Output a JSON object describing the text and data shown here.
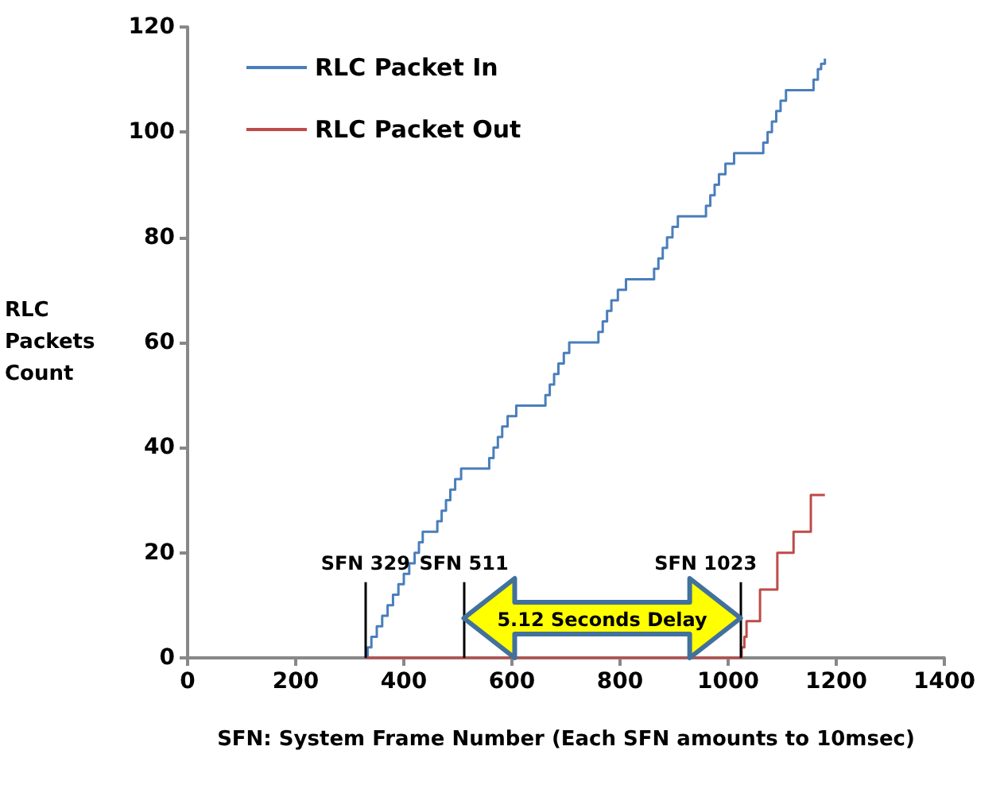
{
  "chart_data": {
    "type": "step",
    "xlabel": "SFN: System Frame Number (Each SFN amounts to 10msec)",
    "ylabel": "RLC Packets Count",
    "xlim": [
      0,
      1400
    ],
    "xticks": [
      0,
      200,
      400,
      600,
      800,
      1000,
      1200,
      1400
    ],
    "ylim": [
      0,
      120
    ],
    "yticks": [
      0,
      20,
      40,
      60,
      80,
      100,
      120
    ],
    "grid": false,
    "legend": "top left",
    "marker": "none",
    "line_style": "solid",
    "series": [
      {
        "name": "RLC Packet In",
        "color": "#4a7ebb",
        "x": [
          329,
          333,
          340,
          350,
          360,
          370,
          380,
          390,
          400,
          410,
          420,
          428,
          435,
          456,
          462,
          470,
          478,
          486,
          495,
          506,
          552,
          558,
          566,
          574,
          582,
          592,
          608,
          656,
          662,
          670,
          678,
          686,
          696,
          706,
          754,
          760,
          768,
          776,
          784,
          796,
          811,
          857,
          863,
          871,
          879,
          887,
          897,
          907,
          953,
          959,
          967,
          975,
          983,
          995,
          1011,
          1059,
          1065,
          1073,
          1081,
          1089,
          1097,
          1107,
          1152,
          1158,
          1166,
          1172,
          1179
        ],
        "values": [
          0,
          2,
          4,
          6,
          8,
          10,
          12,
          14,
          16,
          18,
          20,
          22,
          24,
          24,
          26,
          28,
          30,
          32,
          34,
          36,
          36,
          38,
          40,
          42,
          44,
          46,
          48,
          48,
          50,
          52,
          54,
          56,
          58,
          60,
          60,
          62,
          64,
          66,
          68,
          70,
          72,
          72,
          74,
          76,
          78,
          80,
          82,
          84,
          84,
          86,
          88,
          90,
          92,
          94,
          96,
          96,
          98,
          100,
          102,
          104,
          106,
          108,
          108,
          110,
          112,
          113,
          114
        ]
      },
      {
        "name": "RLC Packet Out",
        "color": "#be4b48",
        "x": [
          329,
          1018,
          1025,
          1030,
          1034,
          1056,
          1059,
          1088,
          1091,
          1118,
          1121,
          1149,
          1153,
          1179
        ],
        "values": [
          0,
          0,
          2,
          4,
          7,
          7,
          13,
          13,
          20,
          20,
          24,
          24,
          31,
          31
        ]
      }
    ],
    "ref_lines": [
      {
        "axis": "x",
        "value": 329,
        "label": "SFN 329",
        "color": "#000000"
      },
      {
        "axis": "x",
        "value": 511,
        "label": "SFN 511",
        "color": "#000000"
      },
      {
        "axis": "x",
        "value": 1023,
        "label": "SFN 1023",
        "color": "#000000"
      }
    ],
    "annotations": [
      "5.12 Seconds Delay"
    ]
  }
}
